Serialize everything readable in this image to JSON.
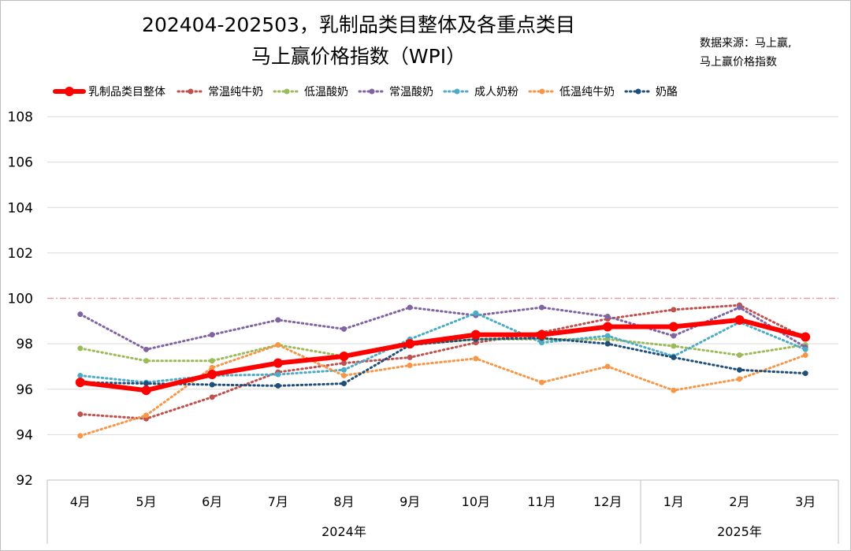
{
  "chart_data": {
    "type": "line",
    "title_line1": "202404-202503，乳制品类目整体及各重点类目",
    "title_line2": "马上赢价格指数（WPI）",
    "source_line1": "数据来源：马上赢,",
    "source_line2": "马上赢价格指数",
    "categories": [
      "4月",
      "5月",
      "6月",
      "7月",
      "8月",
      "9月",
      "10月",
      "11月",
      "12月",
      "1月",
      "2月",
      "3月"
    ],
    "year_groups": [
      {
        "label": "2024年",
        "count": 9
      },
      {
        "label": "2025年",
        "count": 3
      }
    ],
    "ylim": [
      92,
      108
    ],
    "yticks": [
      "92",
      "94",
      "96",
      "98",
      "100",
      "102",
      "104",
      "106",
      "108"
    ],
    "reference_line": 100,
    "grid": true,
    "legend_position": "top",
    "series": [
      {
        "name": "乳制品类目整体",
        "color": "#ff0000",
        "style": "solid",
        "values": [
          96.3,
          95.95,
          96.65,
          97.15,
          97.45,
          98.0,
          98.4,
          98.4,
          98.75,
          98.75,
          99.05,
          98.3
        ]
      },
      {
        "name": "常温纯牛奶",
        "color": "#c0504d",
        "style": "dotted",
        "values": [
          94.9,
          94.7,
          95.65,
          96.75,
          97.15,
          97.4,
          98.05,
          98.5,
          99.1,
          99.5,
          99.7,
          98.25
        ]
      },
      {
        "name": "低温酸奶",
        "color": "#9bbb59",
        "style": "dotted",
        "values": [
          97.8,
          97.25,
          97.25,
          97.95,
          97.45,
          97.95,
          98.2,
          98.2,
          98.2,
          97.9,
          97.5,
          97.95
        ]
      },
      {
        "name": "常温酸奶",
        "color": "#8064a2",
        "style": "dotted",
        "values": [
          99.3,
          97.75,
          98.4,
          99.05,
          98.65,
          99.6,
          99.25,
          99.6,
          99.2,
          98.35,
          99.6,
          97.85
        ]
      },
      {
        "name": "成人奶粉",
        "color": "#4bacc6",
        "style": "dotted",
        "values": [
          96.6,
          96.3,
          96.6,
          96.65,
          96.85,
          98.2,
          99.35,
          98.05,
          98.35,
          97.45,
          98.95,
          97.75
        ]
      },
      {
        "name": "低温纯牛奶",
        "color": "#f79646",
        "style": "dotted",
        "values": [
          93.95,
          94.85,
          96.95,
          97.95,
          96.6,
          97.05,
          97.35,
          96.3,
          97.0,
          95.95,
          96.45,
          97.5
        ]
      },
      {
        "name": "奶酪",
        "color": "#1f4e79",
        "style": "dotted",
        "values": [
          96.3,
          96.25,
          96.2,
          96.15,
          96.25,
          97.95,
          98.2,
          98.25,
          98.0,
          97.4,
          96.85,
          96.7
        ]
      }
    ]
  }
}
